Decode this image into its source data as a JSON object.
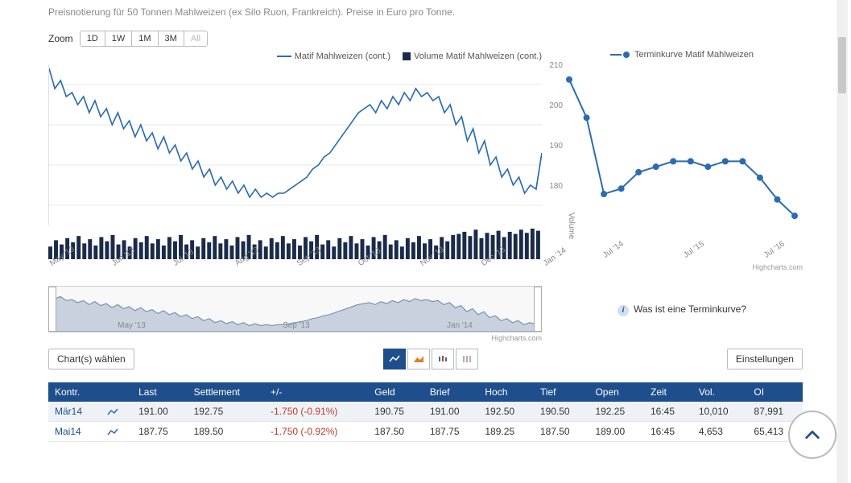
{
  "subtitle": "Preisnotierung für 50 Tonnen Mahlweizen (ex Silo Ruon, Frankreich). Preise in Euro pro Tonne.",
  "zoom": {
    "label": "Zoom",
    "buttons": [
      "1D",
      "1W",
      "1M",
      "3M",
      "All"
    ]
  },
  "main_legend": {
    "series1": "Matif Mahlweizen (cont.)",
    "series2": "Volume Matif Mahlweizen (cont.)"
  },
  "main_chart": {
    "type": "line",
    "x_labels": [
      "May '13",
      "Jun '13",
      "Jul '13",
      "Aug '13",
      "Sep '13",
      "Oct '13",
      "Nov '13",
      "Dec '13",
      "Jan '14"
    ],
    "y_ticks": [
      180,
      190,
      200,
      210
    ],
    "ylim": [
      175,
      215
    ],
    "line_color": "#2b6cb0",
    "grid_color": "#e8e8e8",
    "background": "#ffffff",
    "data": [
      214,
      209,
      211,
      207,
      208,
      205,
      207,
      203,
      206,
      202,
      204,
      200,
      203,
      199,
      201,
      197,
      200,
      196,
      198,
      194,
      197,
      193,
      195,
      191,
      193,
      189,
      191,
      187,
      189,
      185,
      187,
      184,
      186,
      183,
      185,
      182,
      184,
      182,
      183,
      182,
      183,
      183,
      184,
      185,
      186,
      187,
      189,
      190,
      192,
      193,
      195,
      197,
      199,
      201,
      203,
      204,
      205,
      203,
      206,
      204,
      207,
      205,
      208,
      206,
      209,
      207,
      208,
      206,
      207,
      203,
      205,
      200,
      202,
      196,
      199,
      193,
      196,
      190,
      192,
      187,
      189,
      185,
      187,
      183,
      185,
      184,
      193
    ]
  },
  "volume": {
    "bar_color": "#1a2b4a",
    "label": "Volume",
    "data": [
      12,
      18,
      14,
      20,
      16,
      22,
      15,
      19,
      13,
      21,
      17,
      23,
      14,
      18,
      12,
      20,
      16,
      22,
      15,
      19,
      13,
      21,
      17,
      23,
      14,
      18,
      12,
      20,
      16,
      22,
      15,
      19,
      13,
      21,
      17,
      23,
      14,
      18,
      12,
      20,
      16,
      22,
      15,
      19,
      13,
      21,
      17,
      23,
      14,
      18,
      12,
      20,
      16,
      22,
      15,
      19,
      13,
      21,
      17,
      23,
      14,
      18,
      12,
      20,
      16,
      22,
      15,
      19,
      13,
      21,
      17,
      23,
      24,
      26,
      22,
      28,
      20,
      25,
      23,
      27,
      21,
      26,
      24,
      28,
      25,
      29,
      27
    ]
  },
  "navigator": {
    "area_color": "#a8b8cc",
    "labels": [
      "May '13",
      "Sep '13",
      "Jan '14"
    ]
  },
  "credit": "Highcharts.com",
  "controls": {
    "select": "Chart(s) wählen",
    "settings": "Einstellungen"
  },
  "side_chart": {
    "type": "line-markers",
    "legend": "Terminkurve Matif Mahlweizen",
    "x_labels": [
      "Jul '14",
      "Jul '15",
      "Jul '16"
    ],
    "line_color": "#2b6cb0",
    "marker_color": "#2b6cb0",
    "ylim": [
      185,
      216
    ],
    "data": [
      215,
      208,
      194,
      195,
      198,
      199,
      200,
      200,
      199,
      200,
      200,
      197,
      193,
      190
    ]
  },
  "info_link": "Was ist eine Terminkurve?",
  "table": {
    "columns": [
      "Kontr.",
      "",
      "Last",
      "Settlement",
      "+/-",
      "Geld",
      "Brief",
      "Hoch",
      "Tief",
      "Open",
      "Zeit",
      "Vol.",
      "OI"
    ],
    "rows": [
      {
        "kontr": "Mär14",
        "last": "191.00",
        "settlement": "192.75",
        "change": "-1.750 (-0.91%)",
        "geld": "190.75",
        "brief": "191.00",
        "hoch": "192.50",
        "tief": "190.50",
        "open": "192.25",
        "zeit": "16:45",
        "vol": "10,010",
        "oi": "87,991"
      },
      {
        "kontr": "Mai14",
        "last": "187.75",
        "settlement": "189.50",
        "change": "-1.750 (-0.92%)",
        "geld": "187.50",
        "brief": "187.75",
        "hoch": "189.25",
        "tief": "187.50",
        "open": "189.00",
        "zeit": "16:45",
        "vol": "4,653",
        "oi": "65,413"
      }
    ]
  }
}
